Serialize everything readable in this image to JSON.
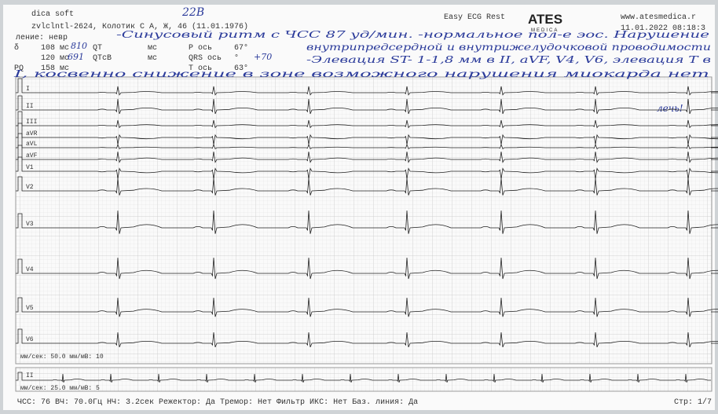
{
  "header": {
    "software": "dica soft",
    "patient": "zvlclntl-2624, Колотик С А, Ж, 46 (11.01.1976)",
    "device": "Easy ECG Rest",
    "logo": "ATES",
    "logo_sub": "MEDICA",
    "website": "www.atesmedica.r",
    "datetime": "11.01.2022  08:18:3",
    "department": "ление: невр",
    "record_no": "22В"
  },
  "params": [
    [
      "δ",
      "108 мс",
      "QT",
      "мс",
      "P ось",
      "67°"
    ],
    [
      "",
      "120 мс",
      "QTcB",
      "мс",
      "QRS ось",
      "°"
    ],
    [
      "PQ",
      "158 мс",
      "",
      "",
      "T ось",
      "63°"
    ]
  ],
  "handwriting": [
    "-Синусовый ритм с ЧСС 87 уд/мин. -нормальное пол-е эос. Нарушение",
    "внутрипредсердной и внутрижелудочковой проводимости",
    "-Элевация ST- 1-1,8 мм в II, aVF, V4, V6, элевация T в",
    "I, косвенно снижение в зоне возможного нарушения миокарда нет",
    "лечь!",
    "810",
    "691",
    "+70"
  ],
  "leads": [
    "I",
    "II",
    "III",
    "aVR",
    "aVL",
    "aVF",
    "V1",
    "V2",
    "V3",
    "V4",
    "V5",
    "V6"
  ],
  "rhythm_lead": "II",
  "scale_main": "мм/сек: 50.0   мм/мВ: 10",
  "scale_rhythm": "мм/сек: 25.0   мм/мВ: 5",
  "footer": {
    "settings": "ЧСС: 76  ВЧ: 70.0Гц  НЧ: 3.2сек  Режектор: Да  Тремор: Нет  Фильтр ИКС: Нет  Баз. линия: Да",
    "page": "Стр: 1/7"
  }
}
